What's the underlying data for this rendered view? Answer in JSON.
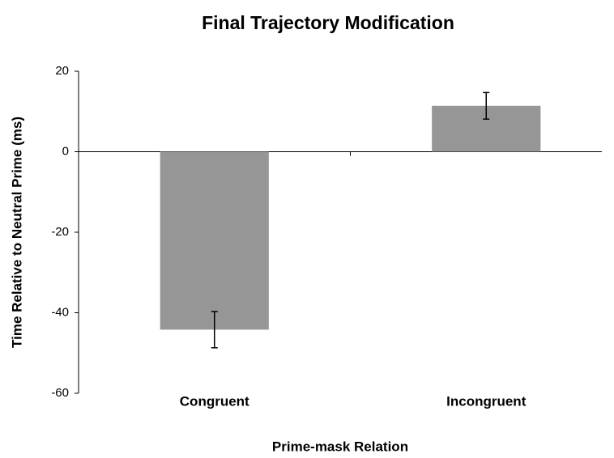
{
  "chart_data": {
    "type": "bar",
    "title": "Final Trajectory Modification",
    "xlabel": "Prime-mask Relation",
    "ylabel": "Time Relative to Neutral Prime (ms)",
    "categories": [
      "Congruent",
      "Incongruent"
    ],
    "values": [
      -44.2,
      11.4
    ],
    "errors": [
      4.5,
      3.3
    ],
    "color": "#969696",
    "ylim": [
      -60,
      20
    ],
    "yticks": [
      -60,
      -40,
      -20,
      0,
      20
    ],
    "grid": false
  }
}
